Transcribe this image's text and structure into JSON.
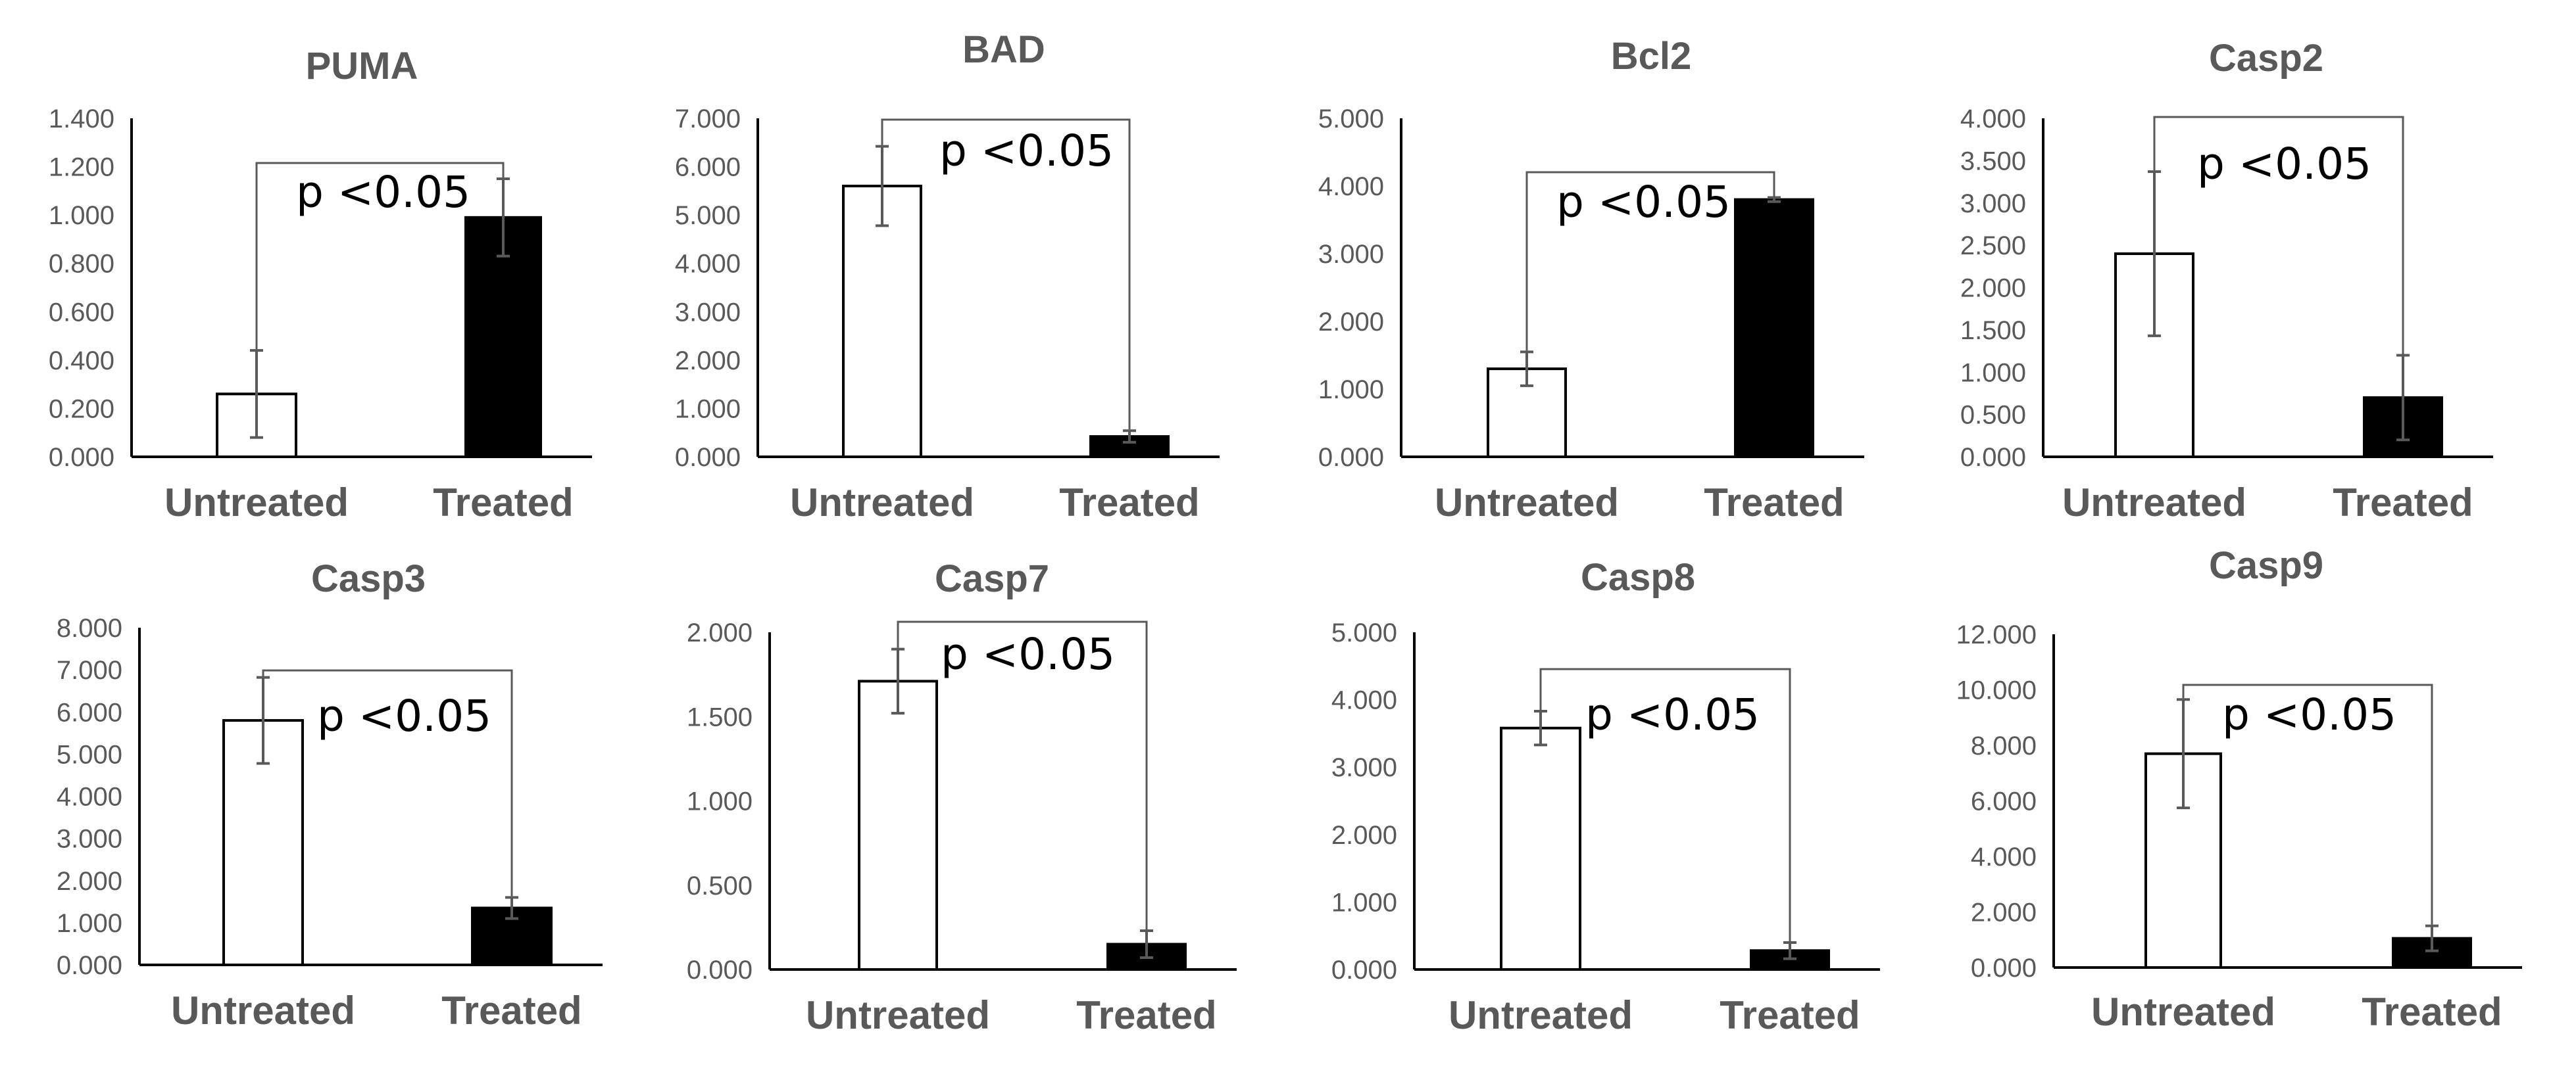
{
  "figure": {
    "title": ""
  },
  "chart_data": [
    {
      "type": "bar",
      "title": "PUMA",
      "categories": [
        "Untreated",
        "Treated"
      ],
      "values": [
        0.26,
        0.99
      ],
      "errors": [
        0.18,
        0.16
      ],
      "ylim": [
        0,
        1.4
      ],
      "ticks": [
        "0.000",
        "0.200",
        "0.400",
        "0.600",
        "0.800",
        "1.000",
        "1.200",
        "1.400"
      ],
      "annotation": "p <0.05",
      "bar_fills": [
        "#ffffff",
        "#000000"
      ]
    },
    {
      "type": "bar",
      "title": "BAD",
      "categories": [
        "Untreated",
        "Treated"
      ],
      "values": [
        5.6,
        0.42
      ],
      "errors": [
        0.82,
        0.12
      ],
      "ylim": [
        0,
        7
      ],
      "ticks": [
        "0.000",
        "1.000",
        "2.000",
        "3.000",
        "4.000",
        "5.000",
        "6.000",
        "7.000"
      ],
      "annotation": "p <0.05",
      "bar_fills": [
        "#ffffff",
        "#000000"
      ]
    },
    {
      "type": "bar",
      "title": "Bcl2",
      "categories": [
        "Untreated",
        "Treated"
      ],
      "values": [
        1.3,
        3.8
      ],
      "errors": [
        0.25,
        0.03
      ],
      "ylim": [
        0,
        5
      ],
      "ticks": [
        "0.000",
        "1.000",
        "2.000",
        "3.000",
        "4.000",
        "5.000"
      ],
      "annotation": "p <0.05",
      "bar_fills": [
        "#ffffff",
        "#000000"
      ]
    },
    {
      "type": "bar",
      "title": "Casp2",
      "categories": [
        "Untreated",
        "Treated"
      ],
      "values": [
        2.4,
        0.7
      ],
      "errors": [
        0.97,
        0.5
      ],
      "ylim": [
        0,
        4
      ],
      "ticks": [
        "0.000",
        "0.500",
        "1.000",
        "1.500",
        "2.000",
        "2.500",
        "3.000",
        "3.500",
        "4.000"
      ],
      "annotation": "p <0.05",
      "bar_fills": [
        "#ffffff",
        "#000000"
      ]
    },
    {
      "type": "bar",
      "title": "Casp3",
      "categories": [
        "Untreated",
        "Treated"
      ],
      "values": [
        5.8,
        1.35
      ],
      "errors": [
        1.02,
        0.25
      ],
      "ylim": [
        0,
        8
      ],
      "ticks": [
        "0.000",
        "1.000",
        "2.000",
        "3.000",
        "4.000",
        "5.000",
        "6.000",
        "7.000",
        "8.000"
      ],
      "annotation": "p <0.05",
      "bar_fills": [
        "#ffffff",
        "#000000"
      ]
    },
    {
      "type": "bar",
      "title": "Casp7",
      "categories": [
        "Untreated",
        "Treated"
      ],
      "values": [
        1.71,
        0.15
      ],
      "errors": [
        0.19,
        0.08
      ],
      "ylim": [
        0,
        2
      ],
      "ticks": [
        "0.000",
        "0.500",
        "1.000",
        "1.500",
        "2.000"
      ],
      "annotation": "p <0.05",
      "bar_fills": [
        "#ffffff",
        "#000000"
      ]
    },
    {
      "type": "bar",
      "title": "Casp8",
      "categories": [
        "Untreated",
        "Treated"
      ],
      "values": [
        3.58,
        0.28
      ],
      "errors": [
        0.25,
        0.12
      ],
      "ylim": [
        0,
        5
      ],
      "ticks": [
        "0.000",
        "1.000",
        "2.000",
        "3.000",
        "4.000",
        "5.000"
      ],
      "annotation": "p <0.05",
      "bar_fills": [
        "#ffffff",
        "#000000"
      ]
    },
    {
      "type": "bar",
      "title": "Casp9",
      "categories": [
        "Untreated",
        "Treated"
      ],
      "values": [
        7.7,
        1.05
      ],
      "errors": [
        1.95,
        0.45
      ],
      "ylim": [
        0,
        12
      ],
      "ticks": [
        "0.000",
        "2.000",
        "4.000",
        "6.000",
        "8.000",
        "10.000",
        "12.000"
      ],
      "annotation": "p <0.05",
      "bar_fills": [
        "#ffffff",
        "#000000"
      ]
    }
  ]
}
